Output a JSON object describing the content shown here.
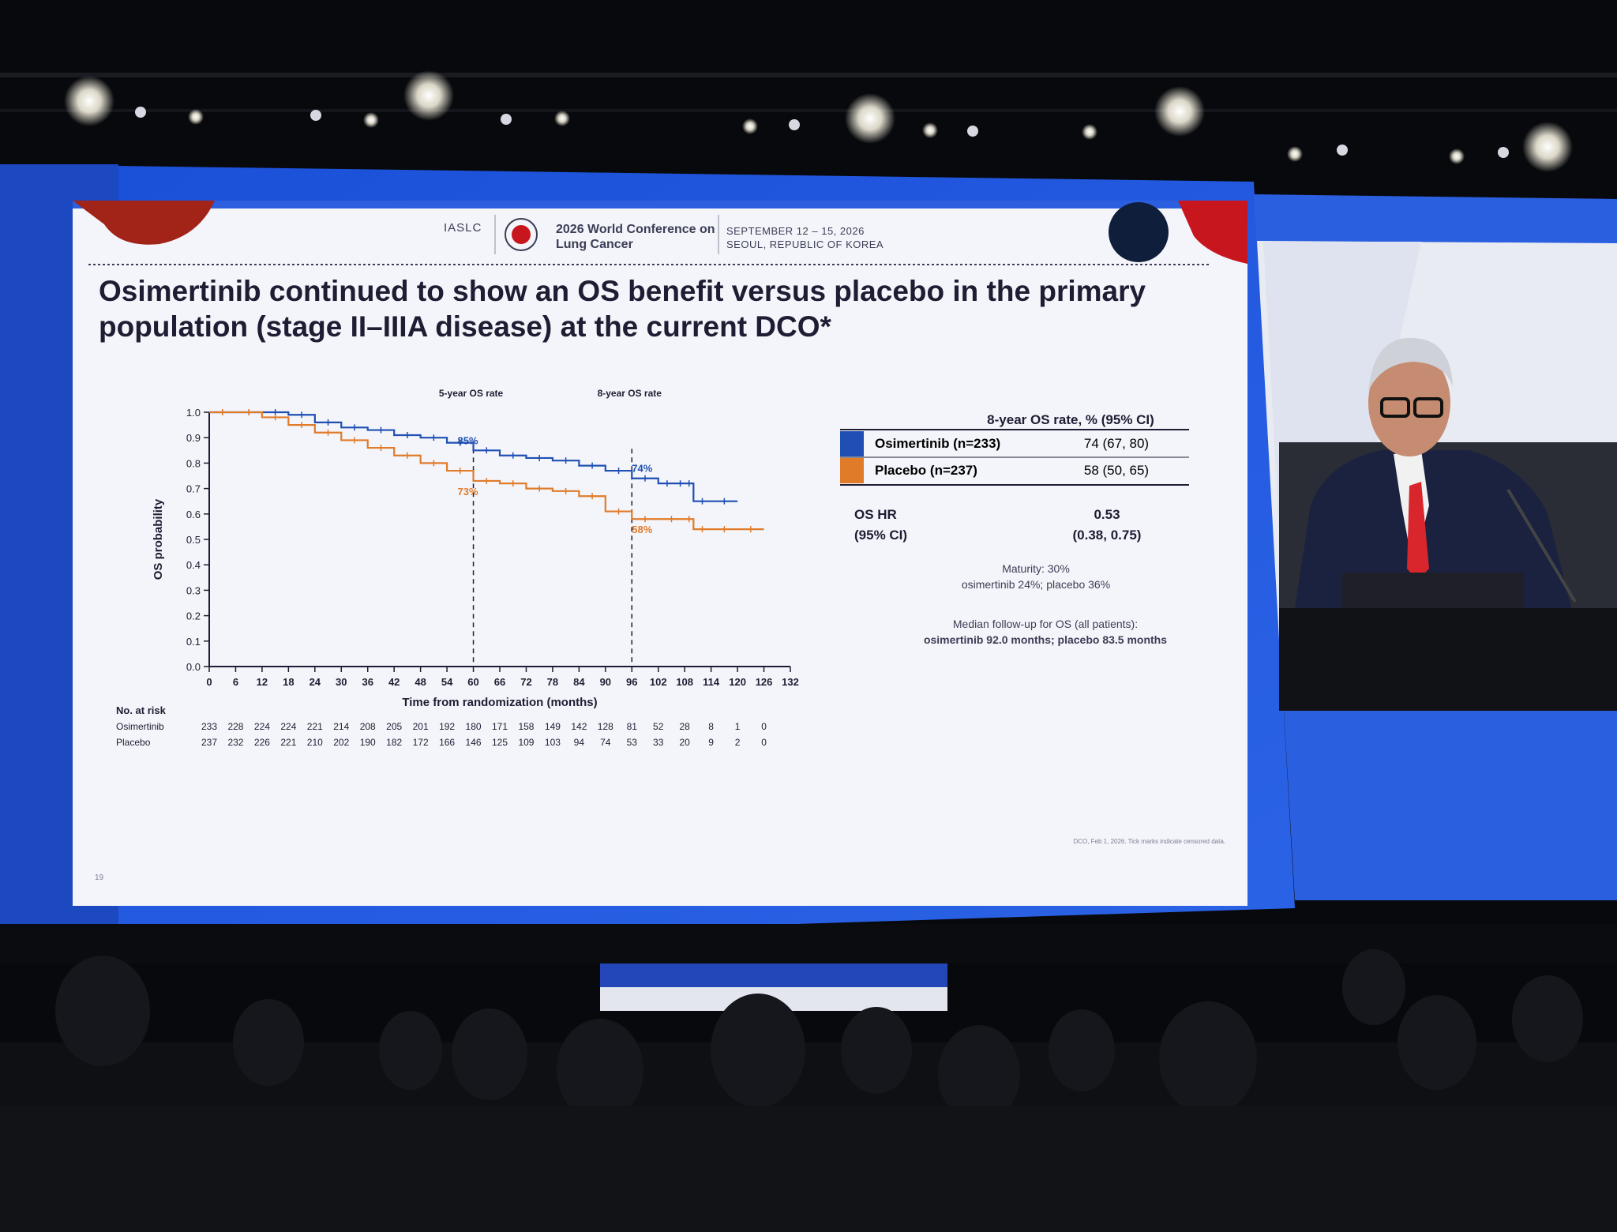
{
  "header": {
    "org": "IASLC",
    "conference": "2026 World Conference on Lung Cancer",
    "dates": "SEPTEMBER 12 – 15, 2026",
    "location": "SEOUL, REPUBLIC OF KOREA"
  },
  "slide_title": "Osimertinib continued to show an OS benefit versus placebo in the primary population (stage II–IIIA disease) at the current DCO*",
  "chart_data": {
    "type": "line",
    "title": "",
    "xlabel": "Time from randomization (months)",
    "ylabel": "OS probability",
    "xlim": [
      0,
      132
    ],
    "ylim": [
      0,
      1.0
    ],
    "x_ticks": [
      0,
      6,
      12,
      18,
      24,
      30,
      36,
      42,
      48,
      54,
      60,
      66,
      72,
      78,
      84,
      90,
      96,
      102,
      108,
      114,
      120,
      126,
      132
    ],
    "y_ticks": [
      0.0,
      0.1,
      0.2,
      0.3,
      0.4,
      0.5,
      0.6,
      0.7,
      0.8,
      0.9,
      1.0
    ],
    "y_tick_labels": [
      "0.0",
      "0.1",
      "0.2",
      "0.3",
      "0.4",
      "0.5",
      "0.6",
      "0.7",
      "0.8",
      "0.9",
      "1.0"
    ],
    "series": [
      {
        "name": "Osimertinib",
        "color": "#1f4fb3",
        "x": [
          0,
          6,
          12,
          18,
          24,
          30,
          36,
          42,
          48,
          54,
          60,
          66,
          72,
          78,
          84,
          90,
          96,
          102,
          106,
          108,
          110,
          114,
          120
        ],
        "y": [
          1.0,
          1.0,
          1.0,
          0.99,
          0.96,
          0.94,
          0.93,
          0.91,
          0.9,
          0.88,
          0.85,
          0.83,
          0.82,
          0.81,
          0.79,
          0.77,
          0.74,
          0.72,
          0.72,
          0.72,
          0.65,
          0.65,
          0.65
        ]
      },
      {
        "name": "Placebo",
        "color": "#e07b2a",
        "x": [
          0,
          6,
          12,
          18,
          24,
          30,
          36,
          42,
          48,
          54,
          60,
          66,
          72,
          78,
          84,
          90,
          96,
          102,
          108,
          110,
          114,
          120,
          126
        ],
        "y": [
          1.0,
          1.0,
          0.98,
          0.95,
          0.92,
          0.89,
          0.86,
          0.83,
          0.8,
          0.77,
          0.73,
          0.72,
          0.7,
          0.69,
          0.67,
          0.61,
          0.58,
          0.58,
          0.58,
          0.54,
          0.54,
          0.54,
          0.54
        ]
      }
    ],
    "reference_lines": [
      {
        "x": 60,
        "label": "5-year OS rate"
      },
      {
        "x": 96,
        "label": "8-year OS rate"
      }
    ],
    "annotations": [
      {
        "x": 60,
        "y": 0.85,
        "text": "85%",
        "color": "#1f4fb3"
      },
      {
        "x": 60,
        "y": 0.73,
        "text": "73%",
        "color": "#e07b2a"
      },
      {
        "x": 96,
        "y": 0.74,
        "text": "74%",
        "color": "#1f4fb3"
      },
      {
        "x": 96,
        "y": 0.58,
        "text": "58%",
        "color": "#e07b2a"
      }
    ],
    "number_at_risk": {
      "title": "No. at risk",
      "rows": [
        {
          "name": "Osimertinib",
          "values": [
            "233",
            "228",
            "224",
            "224",
            "221",
            "214",
            "208",
            "205",
            "201",
            "192",
            "180",
            "171",
            "158",
            "149",
            "142",
            "128",
            "81",
            "52",
            "28",
            "8",
            "1",
            "0"
          ]
        },
        {
          "name": "Placebo",
          "values": [
            "237",
            "232",
            "226",
            "221",
            "210",
            "202",
            "190",
            "182",
            "172",
            "166",
            "146",
            "125",
            "109",
            "103",
            "94",
            "74",
            "53",
            "33",
            "20",
            "9",
            "2",
            "0"
          ]
        }
      ]
    }
  },
  "os_table": {
    "header": "8-year OS rate, % (95% CI)",
    "rows": [
      {
        "label": "Osimertinib (n=233)",
        "value": "74 (67, 80)",
        "color": "#1f4fb3"
      },
      {
        "label": "Placebo (n=237)",
        "value": "58 (50, 65)",
        "color": "#e07b2a"
      }
    ]
  },
  "hazard_ratio": {
    "label_line1": "OS HR",
    "label_line2": "(95% CI)",
    "value_line1": "0.53",
    "value_line2": "(0.38, 0.75)"
  },
  "maturity": {
    "line1": "Maturity: 30%",
    "line2": "osimertinib 24%; placebo 36%"
  },
  "followup": {
    "line1": "Median follow-up for OS (all patients):",
    "line2": "osimertinib 92.0 months; placebo 83.5 months"
  },
  "footnote": "DCO, Feb 1, 2026. Tick marks indicate censored data.",
  "page_number": "19"
}
